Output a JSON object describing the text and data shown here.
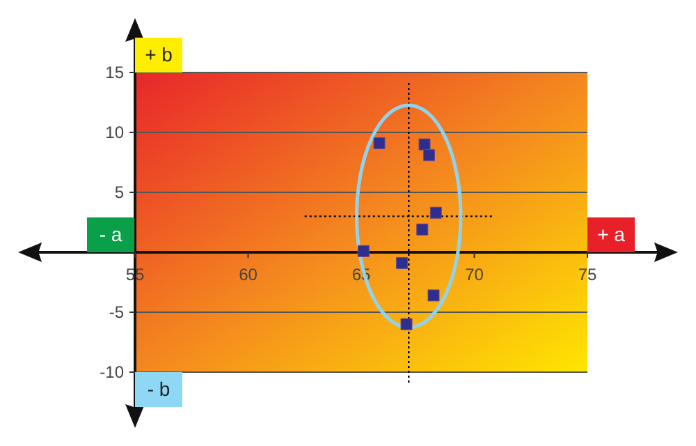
{
  "chart_data": {
    "type": "scatter",
    "x": [
      65.8,
      67.8,
      68.0,
      68.3,
      67.7,
      65.1,
      66.8,
      68.2,
      67.0
    ],
    "values": [
      9.1,
      9.0,
      8.1,
      3.3,
      1.9,
      0.1,
      -0.9,
      -3.6,
      -6.0
    ],
    "color": "#2e2e8f",
    "marker": "square",
    "xlim": [
      55,
      75
    ],
    "ylim": [
      -10,
      15
    ],
    "xticks": [
      55,
      60,
      65,
      70,
      75
    ],
    "yticks": [
      -10,
      -5,
      5,
      10,
      15
    ],
    "grid": "y",
    "ref_lines": [
      {
        "axis": "x",
        "value": 67.1,
        "line_style": "dotted",
        "color": "#000000"
      },
      {
        "axis": "y",
        "value": 3.0,
        "line_style": "dotted",
        "color": "#000000"
      }
    ],
    "annotations": [
      "+ b",
      "- b",
      "- a",
      "+ a"
    ]
  }
}
